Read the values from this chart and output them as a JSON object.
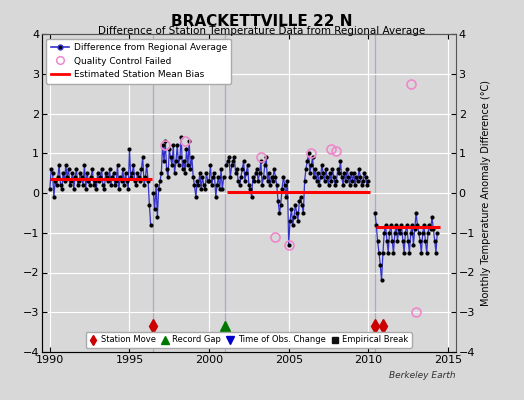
{
  "title": "BRACKETTVILLE 22 N",
  "subtitle": "Difference of Station Temperature Data from Regional Average",
  "ylabel": "Monthly Temperature Anomaly Difference (°C)",
  "background_color": "#d8d8d8",
  "plot_bg_color": "#d8d8d8",
  "ylim": [
    -4,
    4
  ],
  "xlim": [
    1989.5,
    2015.5
  ],
  "xticks": [
    1990,
    1995,
    2000,
    2005,
    2010,
    2015
  ],
  "yticks": [
    -4,
    -3,
    -2,
    -1,
    0,
    1,
    2,
    3,
    4
  ],
  "grid_color": "#ffffff",
  "line_color": "#3333cc",
  "dot_color": "#000000",
  "bias_color": "#ff0000",
  "station_move_color": "#cc0000",
  "record_gap_color": "#007700",
  "obs_change_color": "#0000cc",
  "emp_break_color": "#111111",
  "qc_fail_color": "#ee88cc",
  "vertical_line_color": "#aaaacc",
  "segment_biases": [
    {
      "x_start": 1990.0,
      "x_end": 1996.4,
      "bias": 0.35
    },
    {
      "x_start": 2001.1,
      "x_end": 2010.1,
      "bias": 0.02
    },
    {
      "x_start": 2010.5,
      "x_end": 2014.5,
      "bias": -0.85
    }
  ],
  "vertical_lines": [
    1996.5,
    2001.0,
    2010.4
  ],
  "station_moves": [
    1996.5,
    2010.4,
    2010.9
  ],
  "record_gap": [
    2001.0
  ],
  "marker_y": -3.35,
  "ts1": {
    "times": [
      1990.0,
      1990.08,
      1990.17,
      1990.25,
      1990.33,
      1990.42,
      1990.5,
      1990.58,
      1990.67,
      1990.75,
      1990.83,
      1990.92,
      1991.0,
      1991.08,
      1991.17,
      1991.25,
      1991.33,
      1991.42,
      1991.5,
      1991.58,
      1991.67,
      1991.75,
      1991.83,
      1991.92,
      1992.0,
      1992.08,
      1992.17,
      1992.25,
      1992.33,
      1992.42,
      1992.5,
      1992.58,
      1992.67,
      1992.75,
      1992.83,
      1992.92,
      1993.0,
      1993.08,
      1993.17,
      1993.25,
      1993.33,
      1993.42,
      1993.5,
      1993.58,
      1993.67,
      1993.75,
      1993.83,
      1993.92,
      1994.0,
      1994.08,
      1994.17,
      1994.25,
      1994.33,
      1994.42,
      1994.5,
      1994.58,
      1994.67,
      1994.75,
      1994.83,
      1994.92,
      1995.0,
      1995.08,
      1995.17,
      1995.25,
      1995.33,
      1995.42,
      1995.5,
      1995.58,
      1995.67,
      1995.75,
      1995.83,
      1995.92,
      1996.0,
      1996.08,
      1996.17,
      1996.25,
      1996.33
    ],
    "vals": [
      0.1,
      0.6,
      0.5,
      -0.1,
      0.3,
      0.2,
      0.4,
      0.7,
      0.2,
      0.1,
      0.5,
      0.3,
      0.7,
      0.4,
      0.6,
      0.2,
      0.3,
      0.5,
      0.1,
      0.4,
      0.6,
      0.2,
      0.3,
      0.5,
      0.4,
      0.2,
      0.7,
      0.1,
      0.5,
      0.3,
      0.2,
      0.4,
      0.6,
      0.2,
      0.3,
      0.1,
      0.5,
      0.3,
      0.4,
      0.6,
      0.2,
      0.1,
      0.5,
      0.4,
      0.3,
      0.6,
      0.2,
      0.4,
      0.5,
      0.2,
      0.3,
      0.7,
      0.1,
      0.4,
      0.3,
      0.6,
      0.2,
      0.5,
      0.3,
      0.1,
      1.1,
      0.4,
      0.5,
      0.7,
      0.3,
      0.2,
      0.5,
      0.4,
      0.3,
      0.6,
      0.9,
      0.2,
      0.4,
      0.7,
      0.3,
      -0.3,
      -0.8
    ]
  },
  "ts2": {
    "times": [
      1996.5,
      1996.58,
      1996.67,
      1996.75,
      1996.83,
      1996.92,
      1997.0,
      1997.08,
      1997.17,
      1997.25,
      1997.33,
      1997.42,
      1997.5,
      1997.58,
      1997.67,
      1997.75,
      1997.83,
      1997.92,
      1998.0,
      1998.08,
      1998.17,
      1998.25,
      1998.33,
      1998.42,
      1998.5,
      1998.58,
      1998.67,
      1998.75,
      1998.83,
      1998.92,
      1999.0,
      1999.08,
      1999.17,
      1999.25,
      1999.33,
      1999.42,
      1999.5,
      1999.58,
      1999.67,
      1999.75,
      1999.83,
      1999.92,
      2000.0,
      2000.08,
      2000.17,
      2000.25,
      2000.33,
      2000.42,
      2000.5,
      2000.58,
      2000.67,
      2000.75,
      2000.83,
      2000.92
    ],
    "vals": [
      0.0,
      -0.4,
      0.2,
      -0.6,
      0.1,
      0.3,
      0.5,
      1.2,
      0.8,
      1.3,
      0.6,
      0.4,
      1.1,
      0.9,
      0.7,
      1.2,
      0.5,
      0.8,
      1.2,
      0.7,
      0.9,
      1.4,
      0.6,
      0.8,
      0.5,
      1.1,
      0.7,
      1.3,
      0.6,
      0.9,
      0.4,
      0.2,
      -0.1,
      0.3,
      0.2,
      0.5,
      0.1,
      0.4,
      0.2,
      0.1,
      0.5,
      0.3,
      0.3,
      0.7,
      0.2,
      0.4,
      0.5,
      -0.1,
      0.2,
      0.4,
      0.1,
      0.6,
      0.1,
      0.4
    ]
  },
  "ts3": {
    "times": [
      2001.08,
      2001.17,
      2001.25,
      2001.33,
      2001.42,
      2001.5,
      2001.58,
      2001.67,
      2001.75,
      2001.83,
      2001.92,
      2002.0,
      2002.08,
      2002.17,
      2002.25,
      2002.33,
      2002.42,
      2002.5,
      2002.58,
      2002.67,
      2002.75,
      2002.83,
      2002.92,
      2003.0,
      2003.08,
      2003.17,
      2003.25,
      2003.33,
      2003.42,
      2003.5,
      2003.58,
      2003.67,
      2003.75,
      2003.83,
      2003.92,
      2004.0,
      2004.08,
      2004.17,
      2004.25,
      2004.33,
      2004.42,
      2004.5,
      2004.58,
      2004.67,
      2004.75,
      2004.83,
      2004.92,
      2005.0,
      2005.08,
      2005.17,
      2005.25,
      2005.33,
      2005.42,
      2005.5,
      2005.58,
      2005.67,
      2005.75,
      2005.83,
      2005.92,
      2006.0,
      2006.08,
      2006.17,
      2006.25,
      2006.33,
      2006.42,
      2006.5,
      2006.58,
      2006.67,
      2006.75,
      2006.83,
      2006.92,
      2007.0,
      2007.08,
      2007.17,
      2007.25,
      2007.33,
      2007.42,
      2007.5,
      2007.58,
      2007.67,
      2007.75,
      2007.83,
      2007.92,
      2008.0,
      2008.08,
      2008.17,
      2008.25,
      2008.33,
      2008.42,
      2008.5,
      2008.58,
      2008.67,
      2008.75,
      2008.83,
      2008.92,
      2009.0,
      2009.08,
      2009.17,
      2009.25,
      2009.33,
      2009.42,
      2009.5,
      2009.58,
      2009.67,
      2009.75,
      2009.83,
      2009.92,
      2010.0
    ],
    "vals": [
      0.7,
      0.8,
      0.9,
      0.4,
      0.7,
      0.8,
      0.9,
      0.5,
      0.6,
      0.3,
      0.2,
      0.4,
      0.6,
      0.8,
      0.3,
      0.5,
      0.7,
      0.2,
      0.1,
      -0.1,
      0.4,
      0.3,
      0.5,
      0.6,
      0.3,
      0.5,
      0.8,
      0.2,
      0.4,
      0.7,
      0.9,
      0.3,
      0.5,
      0.2,
      0.4,
      0.3,
      0.6,
      0.4,
      0.2,
      -0.2,
      -0.5,
      -0.3,
      0.1,
      0.4,
      0.2,
      -0.1,
      0.3,
      -1.3,
      -0.7,
      -0.4,
      -0.8,
      -0.6,
      -0.3,
      -0.5,
      -0.7,
      -0.2,
      -0.1,
      -0.3,
      -0.5,
      0.3,
      0.6,
      0.8,
      1.0,
      0.5,
      0.7,
      0.9,
      0.4,
      0.6,
      0.3,
      0.5,
      0.2,
      0.4,
      0.7,
      0.5,
      0.3,
      0.6,
      0.4,
      0.2,
      0.5,
      0.3,
      0.6,
      0.4,
      0.2,
      0.3,
      0.6,
      0.5,
      0.8,
      0.4,
      0.2,
      0.5,
      0.3,
      0.6,
      0.4,
      0.2,
      0.5,
      0.3,
      0.5,
      0.2,
      0.4,
      0.3,
      0.6,
      0.4,
      0.2,
      0.3,
      0.5,
      0.4,
      0.2,
      0.3
    ]
  },
  "ts4": {
    "times": [
      2010.42,
      2010.5,
      2010.58,
      2010.67,
      2010.75,
      2010.83,
      2010.92,
      2011.0,
      2011.08,
      2011.17,
      2011.25,
      2011.33,
      2011.42,
      2011.5,
      2011.58,
      2011.67,
      2011.75,
      2011.83,
      2011.92,
      2012.0,
      2012.08,
      2012.17,
      2012.25,
      2012.33,
      2012.42,
      2012.5,
      2012.58,
      2012.67,
      2012.75,
      2012.83,
      2012.92,
      2013.0,
      2013.08,
      2013.17,
      2013.25,
      2013.33,
      2013.42,
      2013.5,
      2013.58,
      2013.67,
      2013.75,
      2013.83,
      2013.92,
      2014.0,
      2014.08,
      2014.17,
      2014.25,
      2014.33
    ],
    "vals": [
      -0.5,
      -0.8,
      -1.2,
      -1.5,
      -1.8,
      -2.2,
      -1.5,
      -1.0,
      -0.8,
      -1.2,
      -1.5,
      -1.0,
      -0.8,
      -1.2,
      -1.5,
      -1.0,
      -0.8,
      -1.2,
      -0.9,
      -1.0,
      -0.8,
      -1.2,
      -1.5,
      -1.0,
      -0.8,
      -1.2,
      -1.5,
      -1.0,
      -0.8,
      -1.3,
      -0.9,
      -0.5,
      -0.8,
      -1.0,
      -1.2,
      -1.5,
      -1.0,
      -0.8,
      -1.2,
      -1.5,
      -1.0,
      -0.8,
      -0.9,
      -0.6,
      -0.9,
      -1.2,
      -1.5,
      -1.0
    ]
  },
  "qc_fail_points": [
    [
      1997.25,
      1.2
    ],
    [
      1998.5,
      1.3
    ],
    [
      2003.25,
      0.9
    ],
    [
      2004.17,
      -1.1
    ],
    [
      2005.0,
      -1.3
    ],
    [
      2006.42,
      1.0
    ],
    [
      2007.67,
      1.1
    ],
    [
      2008.0,
      1.05
    ],
    [
      2012.67,
      2.75
    ],
    [
      2013.0,
      -3.0
    ]
  ]
}
